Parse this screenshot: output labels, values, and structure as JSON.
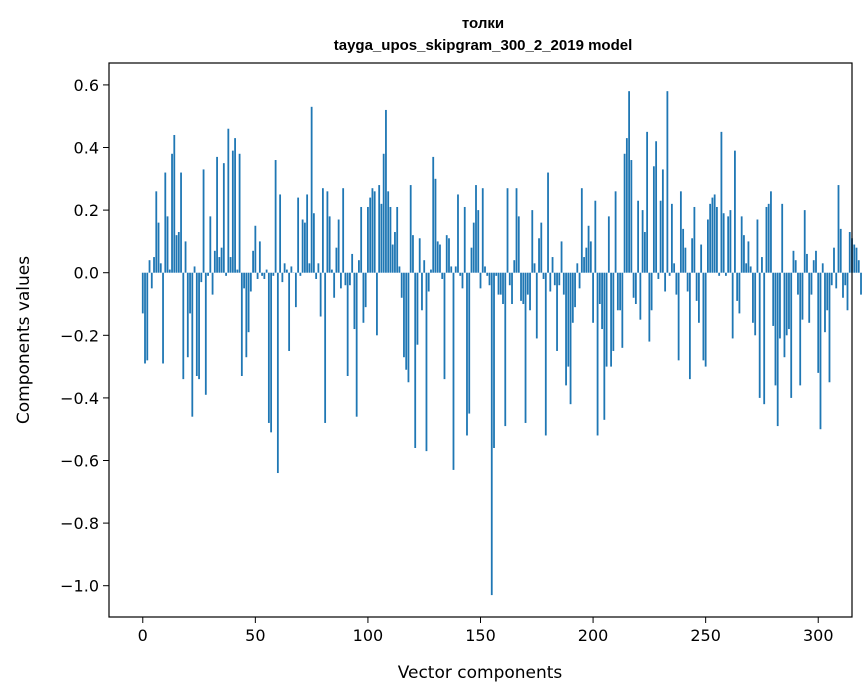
{
  "chart_data": {
    "type": "bar",
    "title": "толки",
    "subtitle": "tayga_upos_skipgram_300_2_2019 model",
    "xlabel": "Vector components",
    "ylabel": "Components values",
    "xlim": [
      -15,
      315
    ],
    "ylim": [
      -1.1,
      0.67
    ],
    "xticks": [
      0,
      50,
      100,
      150,
      200,
      250,
      300
    ],
    "yticks": [
      -1.0,
      -0.8,
      -0.6,
      -0.4,
      -0.2,
      0.0,
      0.2,
      0.4,
      0.6
    ],
    "ytick_labels": [
      "−1.0",
      "−0.8",
      "−0.6",
      "−0.4",
      "−0.2",
      "0.0",
      "0.2",
      "0.4",
      "0.6"
    ],
    "xtick_labels": [
      "0",
      "50",
      "100",
      "150",
      "200",
      "250",
      "300"
    ],
    "bar_color": "#1f77b4",
    "grid": false,
    "x_start": 0,
    "values": [
      -0.13,
      -0.29,
      -0.28,
      0.04,
      -0.05,
      0.05,
      0.26,
      0.16,
      0.03,
      -0.29,
      0.32,
      0.18,
      0.01,
      0.38,
      0.44,
      0.12,
      0.13,
      0.32,
      -0.34,
      0.1,
      -0.27,
      -0.13,
      -0.46,
      0.02,
      -0.33,
      -0.34,
      -0.03,
      0.33,
      -0.39,
      -0.01,
      0.18,
      -0.07,
      0.07,
      0.37,
      0.05,
      0.08,
      0.35,
      -0.01,
      0.46,
      0.05,
      0.39,
      0.43,
      0.01,
      0.38,
      -0.33,
      -0.05,
      -0.27,
      -0.19,
      -0.06,
      0.07,
      0.15,
      -0.02,
      0.1,
      -0.01,
      -0.02,
      0.01,
      -0.48,
      -0.51,
      -0.01,
      0.36,
      -0.64,
      0.25,
      -0.03,
      0.03,
      0.01,
      -0.25,
      0.02,
      0.0,
      -0.11,
      0.24,
      -0.01,
      0.17,
      0.16,
      0.25,
      0.03,
      0.53,
      0.19,
      -0.02,
      0.03,
      -0.14,
      0.27,
      -0.48,
      0.26,
      0.18,
      0.01,
      -0.08,
      0.08,
      0.17,
      -0.05,
      0.27,
      -0.04,
      -0.33,
      -0.04,
      0.06,
      -0.18,
      -0.46,
      0.04,
      0.21,
      -0.16,
      -0.11,
      0.21,
      0.24,
      0.27,
      0.26,
      -0.2,
      0.28,
      0.22,
      0.38,
      0.52,
      0.26,
      0.21,
      0.09,
      0.13,
      0.21,
      0.02,
      -0.08,
      -0.27,
      -0.31,
      -0.35,
      0.28,
      0.12,
      -0.56,
      -0.23,
      0.11,
      -0.12,
      0.04,
      -0.57,
      -0.06,
      0.01,
      0.37,
      0.3,
      0.1,
      0.09,
      -0.02,
      -0.34,
      0.12,
      0.11,
      0.02,
      -0.63,
      0.02,
      0.25,
      -0.01,
      -0.05,
      0.21,
      -0.52,
      -0.45,
      0.08,
      0.16,
      0.28,
      0.2,
      -0.05,
      0.27,
      0.02,
      -0.01,
      -0.04,
      -1.03,
      -0.56,
      -0.01,
      -0.07,
      -0.07,
      -0.1,
      -0.49,
      0.27,
      -0.04,
      -0.1,
      0.04,
      0.27,
      0.18,
      -0.09,
      -0.1,
      -0.48,
      -0.07,
      -0.12,
      0.2,
      0.03,
      -0.21,
      0.11,
      0.16,
      -0.02,
      -0.52,
      0.32,
      -0.06,
      0.05,
      -0.04,
      -0.25,
      -0.04,
      0.1,
      -0.07,
      -0.36,
      -0.3,
      -0.42,
      -0.16,
      -0.11,
      0.03,
      -0.05,
      0.27,
      0.05,
      0.08,
      0.15,
      0.1,
      -0.16,
      0.23,
      -0.52,
      -0.1,
      -0.18,
      -0.47,
      -0.3,
      0.18,
      -0.3,
      -0.25,
      0.26,
      -0.12,
      -0.12,
      -0.24,
      0.38,
      0.43,
      0.58,
      0.36,
      -0.08,
      -0.1,
      0.23,
      -0.15,
      0.2,
      0.13,
      0.45,
      -0.22,
      -0.12,
      0.34,
      0.42,
      -0.02,
      0.23,
      0.33,
      -0.06,
      0.58,
      -0.01,
      0.22,
      0.03,
      -0.07,
      -0.28,
      0.26,
      0.14,
      0.08,
      -0.06,
      -0.34,
      0.11,
      0.21,
      -0.09,
      -0.16,
      0.09,
      -0.28,
      -0.3,
      0.17,
      0.22,
      0.24,
      0.25,
      0.21,
      -0.01,
      0.45,
      0.19,
      -0.01,
      0.18,
      0.2,
      -0.21,
      0.39,
      -0.09,
      -0.13,
      0.18,
      0.12,
      0.03,
      0.1,
      0.02,
      -0.16,
      -0.2,
      0.17,
      -0.4,
      0.05,
      -0.42,
      0.21,
      0.22,
      0.26,
      -0.17,
      -0.36,
      -0.49,
      -0.21,
      0.22,
      -0.27,
      -0.2,
      -0.18,
      -0.4,
      0.07,
      0.04,
      -0.07,
      -0.36,
      -0.15,
      0.2,
      0.06,
      -0.16,
      -0.07,
      0.04,
      0.07,
      -0.32,
      -0.5,
      0.03,
      -0.19,
      -0.12,
      -0.35,
      -0.04,
      0.08,
      -0.05,
      0.28,
      0.14,
      -0.08,
      -0.04,
      -0.12,
      0.13,
      0.11,
      0.09,
      0.08,
      0.04,
      -0.07
    ]
  }
}
